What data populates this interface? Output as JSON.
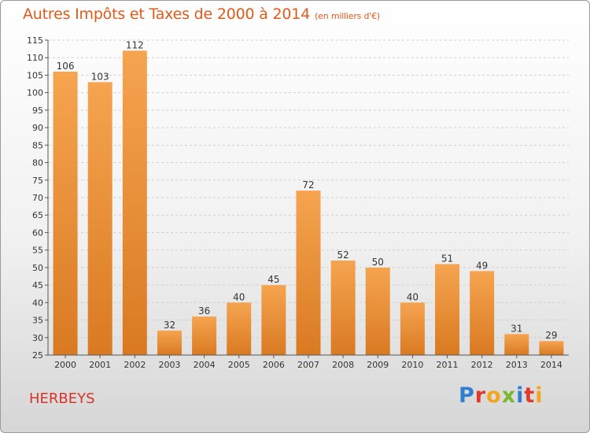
{
  "title": "Autres Impôts et Taxes de 2000 à 2014",
  "subtitle": "(en milliers d'€)",
  "commune": "HERBEYS",
  "logo": {
    "letters": [
      {
        "ch": "P",
        "color": "#2f7fd0"
      },
      {
        "ch": "r",
        "color": "#e03a2e"
      },
      {
        "ch": "o",
        "color": "#f2a51f"
      },
      {
        "ch": "x",
        "color": "#7ab82e"
      },
      {
        "ch": "i",
        "color": "#2f7fd0"
      },
      {
        "ch": "t",
        "color": "#e03a2e"
      },
      {
        "ch": "i",
        "color": "#f2a51f"
      }
    ]
  },
  "colors": {
    "bar_top": "#f6a450",
    "bar_bottom": "#d97a22",
    "title": "#e05a1a"
  },
  "chart_data": {
    "type": "bar",
    "categories": [
      "2000",
      "2001",
      "2002",
      "2003",
      "2004",
      "2005",
      "2006",
      "2007",
      "2008",
      "2009",
      "2010",
      "2011",
      "2012",
      "2013",
      "2014"
    ],
    "values": [
      106,
      103,
      112,
      32,
      36,
      40,
      45,
      72,
      52,
      50,
      40,
      51,
      49,
      31,
      29
    ],
    "ylim": [
      25,
      115
    ],
    "yticks": [
      25,
      30,
      35,
      40,
      45,
      50,
      55,
      60,
      65,
      70,
      75,
      80,
      85,
      90,
      95,
      100,
      105,
      110,
      115
    ],
    "grid": true
  }
}
